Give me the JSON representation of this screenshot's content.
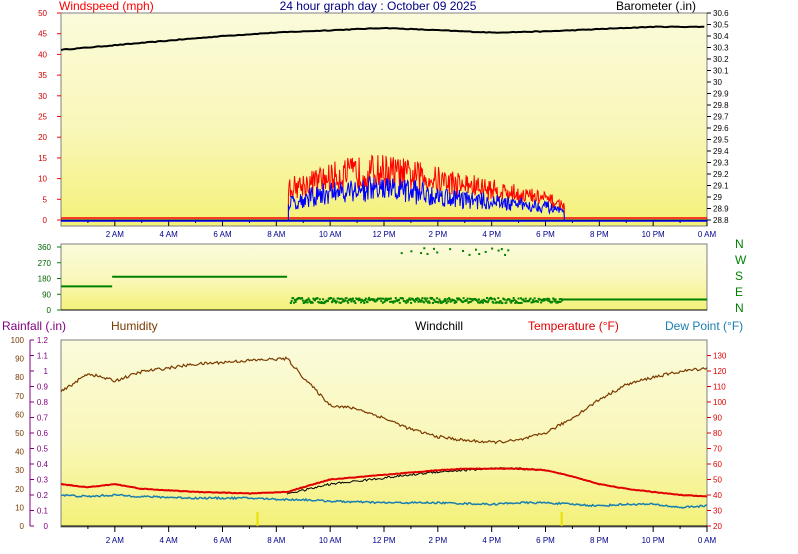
{
  "header": {
    "windspeed_label": "Windspeed (mph)",
    "title": "24 hour graph day : October 09 2025",
    "barometer_label": "Barometer (.in)"
  },
  "bottom_header": {
    "rainfall_label": "Rainfall (.in)",
    "humidity_label": "Humidity",
    "windchill_label": "Windchill",
    "temperature_label": "Temperature (°F)",
    "dewpoint_label": "Dew Point (°F)"
  },
  "compass_labels": [
    "N",
    "W",
    "S",
    "E",
    "N"
  ],
  "colors": {
    "windspeed": "#ff0000",
    "wind_avg": "#0000ff",
    "barometer": "#000000",
    "direction": "#008000",
    "humidity": "#7a3a00",
    "temperature": "#e00000",
    "dewpoint": "#1a7fb0",
    "windchill": "#000000",
    "rainfall": "#800080"
  },
  "chart_data": [
    {
      "type": "line",
      "name": "wind-barometer",
      "x_tick_labels": [
        "2 AM",
        "4 AM",
        "6 AM",
        "8 AM",
        "10 AM",
        "12 PM",
        "2 PM",
        "4 PM",
        "6 PM",
        "8 PM",
        "10 PM",
        "0 AM"
      ],
      "y_left_ticks": [
        "50",
        "45",
        "40",
        "35",
        "30",
        "25",
        "20",
        "15",
        "10",
        "5",
        "0"
      ],
      "y_right_ticks": [
        "30.6",
        "30.5",
        "30.4",
        "30.3",
        "30.2",
        "30.1",
        "30",
        "29.9",
        "29.8",
        "29.7",
        "29.6",
        "29.5",
        "29.4",
        "29.3",
        "29.2",
        "29.1",
        "29",
        "28.9",
        "28.8"
      ],
      "ylim_left": [
        0,
        50
      ],
      "ylim_right": [
        28.8,
        30.6
      ],
      "xlim_hours": [
        0,
        24
      ],
      "barometer_points": [
        [
          0,
          30.28
        ],
        [
          2,
          30.32
        ],
        [
          4,
          30.36
        ],
        [
          6,
          30.4
        ],
        [
          8,
          30.43
        ],
        [
          10,
          30.45
        ],
        [
          12,
          30.47
        ],
        [
          14,
          30.45
        ],
        [
          16,
          30.43
        ],
        [
          18,
          30.44
        ],
        [
          20,
          30.46
        ],
        [
          22,
          30.48
        ],
        [
          24,
          30.48
        ]
      ],
      "wind_active_hours": [
        8.45,
        18.7
      ],
      "wind_gust_envelope": [
        [
          8.45,
          9
        ],
        [
          9.5,
          11
        ],
        [
          10.5,
          13
        ],
        [
          12,
          14
        ],
        [
          13.5,
          12
        ],
        [
          15,
          10
        ],
        [
          16.5,
          8
        ],
        [
          18,
          6
        ],
        [
          18.7,
          4
        ]
      ],
      "wind_avg_envelope": [
        [
          8.45,
          5
        ],
        [
          9.5,
          7
        ],
        [
          10.5,
          9
        ],
        [
          12,
          9
        ],
        [
          13.5,
          8
        ],
        [
          15,
          6
        ],
        [
          16.5,
          5
        ],
        [
          18,
          4
        ],
        [
          18.7,
          2
        ]
      ],
      "wind_baseline_mph": 0
    },
    {
      "type": "scatter",
      "name": "wind-direction",
      "y_ticks": [
        "360",
        "270",
        "180",
        "90",
        "0"
      ],
      "ylim": [
        0,
        360
      ],
      "segments": [
        {
          "from": 0,
          "to": 1.9,
          "value": 135
        },
        {
          "from": 1.9,
          "to": 8.4,
          "value": 190
        },
        {
          "from": 18.6,
          "to": 24,
          "value": 60
        }
      ],
      "scatter_range_hours": [
        8.5,
        18.6
      ],
      "scatter_main_band": [
        45,
        75
      ],
      "scatter_north_range_hours": [
        12.5,
        16.8
      ],
      "scatter_north_band": [
        320,
        360
      ]
    },
    {
      "type": "line",
      "name": "temperature-humidity",
      "x_tick_labels": [
        "2 AM",
        "4 AM",
        "6 AM",
        "8 AM",
        "10 AM",
        "12 PM",
        "2 PM",
        "4 PM",
        "6 PM",
        "8 PM",
        "10 PM",
        "0 AM"
      ],
      "y_rain_ticks": [
        "1.2",
        "1.1",
        "1",
        "0.9",
        "0.8",
        "0.7",
        "0.6",
        "0.5",
        "0.4",
        "0.3",
        "0.2",
        "0.1",
        "0"
      ],
      "y_humidity_ticks": [
        "100",
        "90",
        "80",
        "70",
        "60",
        "50",
        "40",
        "30",
        "20",
        "10",
        "0"
      ],
      "y_temp_ticks": [
        "130",
        "120",
        "110",
        "100",
        "90",
        "80",
        "70",
        "60",
        "50",
        "40",
        "30",
        "20"
      ],
      "ylim_humidity": [
        0,
        100
      ],
      "ylim_temp": [
        20,
        140
      ],
      "ylim_rain": [
        0,
        1.2
      ],
      "humidity": [
        [
          0,
          72
        ],
        [
          1,
          82
        ],
        [
          2,
          78
        ],
        [
          3,
          83
        ],
        [
          5,
          87
        ],
        [
          7,
          89
        ],
        [
          8.4,
          90
        ],
        [
          9,
          80
        ],
        [
          10,
          65
        ],
        [
          11,
          63
        ],
        [
          12,
          58
        ],
        [
          13,
          52
        ],
        [
          14,
          48
        ],
        [
          15,
          46
        ],
        [
          16,
          45
        ],
        [
          17,
          46
        ],
        [
          18,
          50
        ],
        [
          19,
          58
        ],
        [
          20,
          68
        ],
        [
          21,
          76
        ],
        [
          22,
          80
        ],
        [
          23,
          83
        ],
        [
          24,
          85
        ]
      ],
      "temperature": [
        [
          0,
          47
        ],
        [
          1,
          45
        ],
        [
          2,
          47
        ],
        [
          3,
          44
        ],
        [
          5,
          42
        ],
        [
          7,
          41
        ],
        [
          8.4,
          42
        ],
        [
          9,
          45
        ],
        [
          10,
          50
        ],
        [
          12,
          53
        ],
        [
          14,
          56
        ],
        [
          15,
          57
        ],
        [
          16,
          57
        ],
        [
          17,
          57
        ],
        [
          18,
          56
        ],
        [
          19,
          52
        ],
        [
          20,
          47
        ],
        [
          21,
          44
        ],
        [
          22,
          42
        ],
        [
          23,
          40
        ],
        [
          24,
          39
        ]
      ],
      "dewpoint": [
        [
          0,
          40
        ],
        [
          1,
          39
        ],
        [
          2,
          40
        ],
        [
          3,
          39
        ],
        [
          5,
          38
        ],
        [
          7,
          38
        ],
        [
          8.4,
          37
        ],
        [
          9,
          37
        ],
        [
          10,
          36
        ],
        [
          12,
          35
        ],
        [
          14,
          35
        ],
        [
          16,
          34
        ],
        [
          17,
          35
        ],
        [
          18,
          35
        ],
        [
          19,
          34
        ],
        [
          20,
          33
        ],
        [
          21,
          34
        ],
        [
          22,
          34
        ],
        [
          23,
          32
        ],
        [
          24,
          33
        ]
      ],
      "windchill": [
        [
          8.4,
          41
        ],
        [
          9,
          43
        ],
        [
          10,
          47
        ],
        [
          11,
          49
        ],
        [
          12,
          51
        ],
        [
          13,
          53
        ],
        [
          14,
          55
        ],
        [
          15,
          56
        ],
        [
          16,
          57
        ],
        [
          17,
          57
        ],
        [
          18,
          56
        ]
      ],
      "rain_markers_hours": [
        7.3,
        18.6
      ]
    }
  ]
}
